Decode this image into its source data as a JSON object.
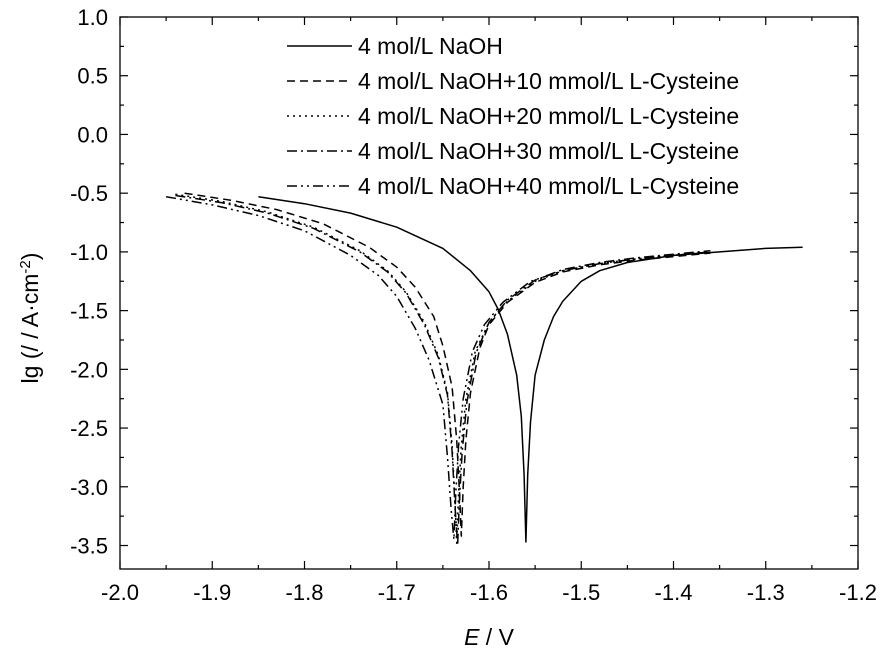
{
  "chart_data": {
    "type": "line",
    "xlabel_var": "E",
    "xlabel_unit": " / V",
    "ylabel": "lg (/ / A·cm",
    "ylabel_sup": "-2",
    "ylabel_close": ")",
    "xlim": [
      -2.0,
      -1.2
    ],
    "ylim": [
      -3.7,
      1.0
    ],
    "xticks": [
      -2.0,
      -1.9,
      -1.8,
      -1.7,
      -1.6,
      -1.5,
      -1.4,
      -1.3,
      -1.2
    ],
    "xtick_labels": [
      "-2.0",
      "-1.9",
      "-1.8",
      "-1.7",
      "-1.6",
      "-1.5",
      "-1.4",
      "-1.3",
      "-1.2"
    ],
    "yticks": [
      1.0,
      0.5,
      0.0,
      -0.5,
      -1.0,
      -1.5,
      -2.0,
      -2.5,
      -3.0,
      -3.5
    ],
    "ytick_labels": [
      "1.0",
      "0.5",
      "0.0",
      "-0.5",
      "-1.0",
      "-1.5",
      "-2.0",
      "-2.5",
      "-3.0",
      "-3.5"
    ],
    "legend_position": "top-right",
    "series": [
      {
        "name": "4 mol/L NaOH",
        "dash": "solid",
        "x": [
          -1.85,
          -1.8,
          -1.75,
          -1.7,
          -1.65,
          -1.62,
          -1.6,
          -1.59,
          -1.58,
          -1.57,
          -1.565,
          -1.562,
          -1.56,
          -1.558,
          -1.555,
          -1.55,
          -1.54,
          -1.53,
          -1.52,
          -1.5,
          -1.48,
          -1.45,
          -1.4,
          -1.35,
          -1.3,
          -1.26
        ],
        "y": [
          -0.53,
          -0.59,
          -0.67,
          -0.79,
          -0.97,
          -1.16,
          -1.34,
          -1.49,
          -1.7,
          -2.05,
          -2.4,
          -2.9,
          -3.47,
          -2.9,
          -2.45,
          -2.05,
          -1.75,
          -1.55,
          -1.42,
          -1.25,
          -1.16,
          -1.09,
          -1.03,
          -1.0,
          -0.97,
          -0.96
        ]
      },
      {
        "name": "4 mol/L NaOH+10 mmol/L L-Cysteine",
        "dash": "dashed",
        "x": [
          -1.93,
          -1.88,
          -1.83,
          -1.78,
          -1.73,
          -1.7,
          -1.68,
          -1.66,
          -1.65,
          -1.64,
          -1.635,
          -1.632,
          -1.63,
          -1.628,
          -1.625,
          -1.62,
          -1.61,
          -1.6,
          -1.58,
          -1.55,
          -1.52,
          -1.48,
          -1.44,
          -1.4,
          -1.36
        ],
        "y": [
          -0.5,
          -0.56,
          -0.64,
          -0.76,
          -0.96,
          -1.13,
          -1.3,
          -1.55,
          -1.8,
          -2.15,
          -2.6,
          -3.05,
          -3.42,
          -3.0,
          -2.6,
          -2.2,
          -1.82,
          -1.62,
          -1.43,
          -1.26,
          -1.17,
          -1.11,
          -1.07,
          -1.04,
          -1.01
        ]
      },
      {
        "name": "4 mol/L NaOH+20 mmol/L L-Cysteine",
        "dash": "dotted",
        "x": [
          -1.94,
          -1.89,
          -1.84,
          -1.79,
          -1.74,
          -1.71,
          -1.69,
          -1.67,
          -1.655,
          -1.645,
          -1.64,
          -1.637,
          -1.635,
          -1.633,
          -1.63,
          -1.625,
          -1.615,
          -1.6,
          -1.58,
          -1.55,
          -1.52,
          -1.48,
          -1.44,
          -1.4,
          -1.36
        ],
        "y": [
          -0.51,
          -0.57,
          -0.66,
          -0.79,
          -0.99,
          -1.16,
          -1.34,
          -1.6,
          -1.88,
          -2.2,
          -2.65,
          -3.1,
          -3.48,
          -3.05,
          -2.65,
          -2.25,
          -1.85,
          -1.6,
          -1.42,
          -1.25,
          -1.16,
          -1.1,
          -1.06,
          -1.03,
          -1.0
        ]
      },
      {
        "name": "4 mol/L NaOH+30 mmol/L L-Cysteine",
        "dash": "dashdot",
        "x": [
          -1.94,
          -1.89,
          -1.84,
          -1.79,
          -1.74,
          -1.71,
          -1.69,
          -1.67,
          -1.655,
          -1.645,
          -1.64,
          -1.637,
          -1.634,
          -1.632,
          -1.629,
          -1.624,
          -1.614,
          -1.6,
          -1.58,
          -1.55,
          -1.52,
          -1.48,
          -1.44,
          -1.4,
          -1.36
        ],
        "y": [
          -0.52,
          -0.58,
          -0.67,
          -0.8,
          -1.0,
          -1.17,
          -1.35,
          -1.62,
          -1.9,
          -2.22,
          -2.7,
          -3.15,
          -3.5,
          -3.1,
          -2.7,
          -2.28,
          -1.86,
          -1.6,
          -1.41,
          -1.24,
          -1.15,
          -1.09,
          -1.05,
          -1.02,
          -0.99
        ]
      },
      {
        "name": "4 mol/L NaOH+40 mmol/L L-Cysteine",
        "dash": "dashdotdot",
        "x": [
          -1.95,
          -1.9,
          -1.85,
          -1.8,
          -1.75,
          -1.72,
          -1.7,
          -1.68,
          -1.665,
          -1.65,
          -1.645,
          -1.641,
          -1.638,
          -1.636,
          -1.633,
          -1.628,
          -1.618,
          -1.605,
          -1.585,
          -1.555,
          -1.52,
          -1.48,
          -1.44,
          -1.4,
          -1.36
        ],
        "y": [
          -0.53,
          -0.6,
          -0.69,
          -0.82,
          -1.03,
          -1.2,
          -1.38,
          -1.65,
          -1.92,
          -2.3,
          -2.75,
          -3.2,
          -3.45,
          -3.05,
          -2.65,
          -2.25,
          -1.85,
          -1.62,
          -1.43,
          -1.25,
          -1.16,
          -1.1,
          -1.06,
          -1.03,
          -1.0
        ]
      }
    ]
  }
}
